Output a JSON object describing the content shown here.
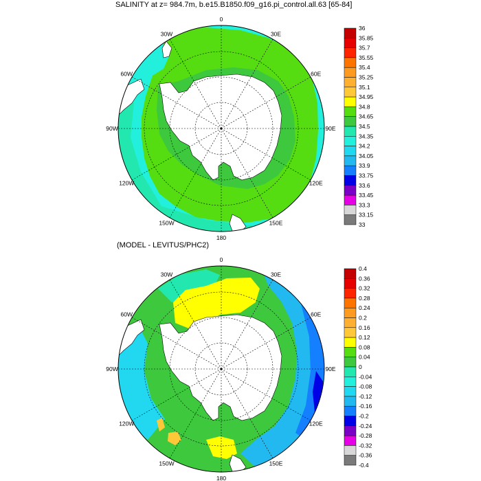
{
  "titles": {
    "top": "SALINITY at z= 984.7m, b.e15.B1850.f09_g16.pi_control.all.63 [65-84]",
    "bottom": "(MODEL - LEVITUS/PHC2)"
  },
  "map_labels": [
    "0",
    "30E",
    "60E",
    "90E",
    "120E",
    "150E",
    "180",
    "150W",
    "120W",
    "90W",
    "60W",
    "30W"
  ],
  "colorbar_top": {
    "labels": [
      "36",
      "35.85",
      "35.7",
      "35.55",
      "35.4",
      "35.25",
      "35.1",
      "34.95",
      "34.8",
      "34.65",
      "34.5",
      "34.35",
      "34.2",
      "34.05",
      "33.9",
      "33.75",
      "33.6",
      "33.45",
      "33.3",
      "33.15",
      "33"
    ],
    "colors": [
      "#c40000",
      "#e60000",
      "#ff2400",
      "#ff7400",
      "#ff9a20",
      "#ffb030",
      "#ffc838",
      "#ffff00",
      "#55dd11",
      "#3ec83e",
      "#22e8b0",
      "#22f0dc",
      "#22d8f0",
      "#22b8f0",
      "#1480ff",
      "#0000e6",
      "#7a00c8",
      "#e600e6",
      "#d8d8d8",
      "#7a7a7a"
    ]
  },
  "colorbar_bottom": {
    "labels": [
      "0.4",
      "0.36",
      "0.32",
      "0.28",
      "0.24",
      "0.2",
      "0.16",
      "0.12",
      "0.08",
      "0.04",
      "0",
      "-0.04",
      "-0.08",
      "-0.12",
      "-0.16",
      "-0.2",
      "-0.24",
      "-0.28",
      "-0.32",
      "-0.36",
      "-0.4"
    ],
    "colors": [
      "#c40000",
      "#e60000",
      "#ff2400",
      "#ff7400",
      "#ff9a20",
      "#ffb030",
      "#ffc838",
      "#ffff00",
      "#55dd11",
      "#3ec83e",
      "#22e8b0",
      "#22f0dc",
      "#22d8f0",
      "#22b8f0",
      "#1480ff",
      "#0000e6",
      "#7a00c8",
      "#e600e6",
      "#d8d8d8",
      "#7a7a7a"
    ]
  }
}
